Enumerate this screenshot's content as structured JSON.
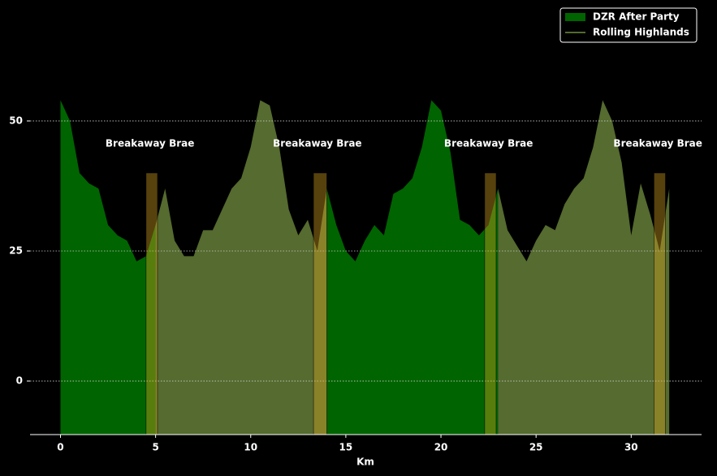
{
  "chart_data": {
    "type": "area",
    "x": [
      0,
      0.5,
      1,
      1.5,
      2,
      2.5,
      3,
      3.5,
      4,
      4.5,
      5,
      5.5,
      6,
      6.5,
      7,
      7.5,
      8,
      8.5,
      9,
      9.5,
      10,
      10.5,
      11,
      11.5,
      12,
      12.5,
      13,
      13.5,
      14,
      14.5,
      15,
      15.5,
      16,
      16.5,
      17,
      17.5,
      18,
      18.5,
      19,
      19.5,
      20,
      20.5,
      21,
      21.5,
      22,
      22.5,
      23,
      23.5,
      24,
      24.5,
      25,
      25.5,
      26,
      26.5,
      27,
      27.5,
      28,
      28.5,
      29,
      29.5,
      30,
      30.5,
      31,
      31.5,
      32
    ],
    "series": [
      {
        "name": "DZR After Party",
        "color": "#006400",
        "values": [
          54,
          50,
          40,
          38,
          37,
          30,
          28,
          27,
          23,
          24,
          30,
          null,
          null,
          null,
          null,
          null,
          null,
          null,
          null,
          null,
          null,
          null,
          null,
          null,
          null,
          null,
          null,
          null,
          37,
          30,
          25,
          23,
          27,
          30,
          28,
          36,
          37,
          39,
          45,
          54,
          52,
          44,
          31,
          30,
          28,
          30,
          37,
          null,
          null,
          null,
          null,
          null,
          null,
          null,
          null,
          null,
          null,
          null,
          null,
          null,
          null,
          null,
          null,
          null,
          null
        ]
      },
      {
        "name": "Rolling Highlands",
        "color": "#556b2f",
        "values": [
          null,
          null,
          null,
          null,
          null,
          null,
          null,
          null,
          null,
          null,
          30,
          37,
          27,
          24,
          24,
          29,
          29,
          33,
          37,
          39,
          45,
          54,
          53,
          45,
          33,
          28,
          31,
          25,
          37,
          null,
          null,
          null,
          null,
          null,
          null,
          null,
          null,
          null,
          null,
          null,
          null,
          null,
          null,
          null,
          null,
          null,
          37,
          29,
          26,
          23,
          27,
          30,
          29,
          34,
          37,
          39,
          45,
          54,
          50,
          42,
          28,
          38,
          32,
          25,
          37
        ]
      }
    ],
    "annotations": [
      {
        "label": "Breakaway Brae",
        "x0": 4.5,
        "x1": 5.1,
        "top": 40
      },
      {
        "label": "Breakaway Brae",
        "x0": 13.3,
        "x1": 14,
        "top": 40
      },
      {
        "label": "Breakaway Brae",
        "x0": 22.3,
        "x1": 22.9,
        "top": 40
      },
      {
        "label": "Breakaway Brae",
        "x0": 31.2,
        "x1": 31.8,
        "top": 40
      }
    ],
    "annotation_color": "#daa520",
    "xlabel": "Km",
    "xlim": [
      -1.6,
      33.7
    ],
    "xticks": [
      0,
      5,
      10,
      15,
      20,
      25,
      30
    ],
    "ylim": [
      -10.3,
      71.7
    ],
    "yticks": [
      0,
      25,
      50
    ],
    "grid": true,
    "legend": "upper right"
  }
}
